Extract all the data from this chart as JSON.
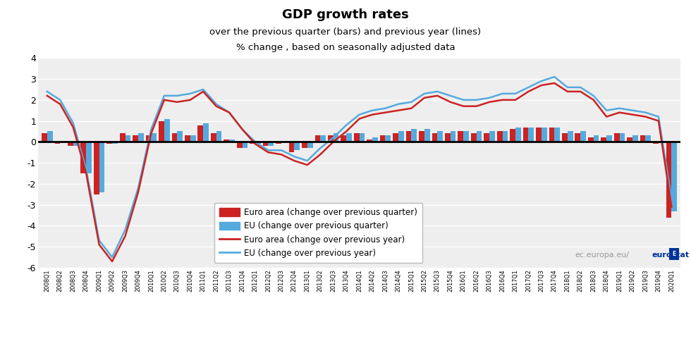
{
  "title": "GDP growth rates",
  "subtitle1": "over the previous quarter (bars) and previous year (lines)",
  "subtitle2": "% change , based on seasonally adjusted data",
  "ylim": [
    -6,
    4
  ],
  "yticks": [
    -6,
    -5,
    -4,
    -3,
    -2,
    -1,
    0,
    1,
    2,
    3,
    4
  ],
  "quarters": [
    "2008Q1",
    "2008Q2",
    "2008Q3",
    "2008Q4",
    "2009Q1",
    "2009Q2",
    "2009Q3",
    "2009Q4",
    "2010Q1",
    "2010Q2",
    "2010Q3",
    "2010Q4",
    "2011Q1",
    "2011Q2",
    "2011Q3",
    "2011Q4",
    "2012Q1",
    "2012Q2",
    "2012Q3",
    "2012Q4",
    "2013Q1",
    "2013Q2",
    "2013Q3",
    "2013Q4",
    "2014Q1",
    "2014Q2",
    "2014Q3",
    "2014Q4",
    "2015Q1",
    "2015Q2",
    "2015Q3",
    "2015Q4",
    "2016Q1",
    "2016Q2",
    "2016Q3",
    "2016Q4",
    "2017Q1",
    "2017Q2",
    "2017Q3",
    "2017Q4",
    "2018Q1",
    "2018Q2",
    "2018Q3",
    "2018Q4",
    "2019Q1",
    "2019Q2",
    "2019Q3",
    "2019Q4",
    "2020Q1"
  ],
  "euro_bar": [
    0.4,
    -0.1,
    -0.2,
    -1.5,
    -2.5,
    -0.1,
    0.4,
    0.3,
    0.3,
    1.0,
    0.4,
    0.3,
    0.8,
    0.4,
    0.1,
    -0.3,
    -0.1,
    -0.2,
    -0.1,
    -0.5,
    -0.3,
    0.3,
    0.3,
    0.3,
    0.4,
    0.1,
    0.3,
    0.4,
    0.5,
    0.5,
    0.4,
    0.4,
    0.5,
    0.4,
    0.4,
    0.5,
    0.6,
    0.7,
    0.7,
    0.7,
    0.4,
    0.4,
    0.2,
    0.2,
    0.4,
    0.2,
    0.3,
    -0.1,
    -3.6
  ],
  "eu_bar": [
    0.5,
    0.0,
    -0.2,
    -1.5,
    -2.4,
    -0.1,
    0.3,
    0.4,
    0.4,
    1.1,
    0.5,
    0.3,
    0.9,
    0.5,
    0.1,
    -0.3,
    -0.1,
    -0.2,
    0.0,
    -0.4,
    -0.3,
    0.3,
    0.4,
    0.4,
    0.4,
    0.2,
    0.3,
    0.5,
    0.6,
    0.6,
    0.5,
    0.5,
    0.5,
    0.5,
    0.5,
    0.5,
    0.7,
    0.7,
    0.7,
    0.7,
    0.5,
    0.5,
    0.3,
    0.3,
    0.4,
    0.3,
    0.3,
    0.0,
    -3.3
  ],
  "euro_line": [
    2.2,
    1.8,
    0.7,
    -1.5,
    -4.9,
    -5.7,
    -4.5,
    -2.4,
    0.4,
    2.0,
    1.9,
    2.0,
    2.4,
    1.7,
    1.4,
    0.6,
    -0.1,
    -0.5,
    -0.6,
    -0.9,
    -1.1,
    -0.6,
    0.0,
    0.5,
    1.1,
    1.3,
    1.4,
    1.5,
    1.6,
    2.1,
    2.2,
    1.9,
    1.7,
    1.7,
    1.9,
    2.0,
    2.0,
    2.4,
    2.7,
    2.8,
    2.4,
    2.4,
    2.0,
    1.2,
    1.4,
    1.3,
    1.2,
    1.0,
    -3.1
  ],
  "eu_line": [
    2.4,
    2.0,
    0.9,
    -1.3,
    -4.7,
    -5.5,
    -4.2,
    -2.2,
    0.6,
    2.2,
    2.2,
    2.3,
    2.5,
    1.8,
    1.4,
    0.6,
    0.0,
    -0.4,
    -0.4,
    -0.7,
    -0.9,
    -0.3,
    0.2,
    0.8,
    1.3,
    1.5,
    1.6,
    1.8,
    1.9,
    2.3,
    2.4,
    2.2,
    2.0,
    2.0,
    2.1,
    2.3,
    2.3,
    2.6,
    2.9,
    3.1,
    2.6,
    2.6,
    2.2,
    1.5,
    1.6,
    1.5,
    1.4,
    1.2,
    -2.7
  ],
  "euro_bar_color": "#cc2222",
  "eu_bar_color": "#55aadd",
  "euro_line_color": "#cc2222",
  "eu_line_color": "#55aadd",
  "bg_color": "#eeeeee",
  "grid_color": "#ffffff",
  "legend_labels": [
    "Euro area (change over previous quarter)",
    "EU (change over previous quarter)",
    "Euro area (change over previous year)",
    "EU (change over previous year)"
  ]
}
